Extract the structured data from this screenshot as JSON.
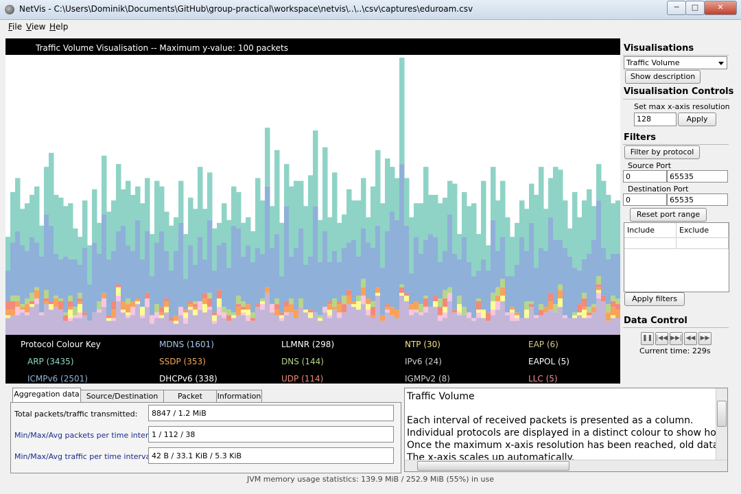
{
  "window": {
    "title": "NetVis - C:\\Users\\Dominik\\Documents\\GitHub\\group-practical\\workspace\\netvis\\..\\..\\csv\\captures\\eduroam.csv",
    "minimize": "─",
    "maximize": "□",
    "close": "✕"
  },
  "menu": [
    {
      "key": "F",
      "rest": "ile"
    },
    {
      "key": "V",
      "rest": "iew"
    },
    {
      "key": "H",
      "rest": "elp"
    }
  ],
  "visualisation": {
    "title": "Traffic Volume Visualisation -- Maximum y-value: 100 packets",
    "key_title": "Protocol Colour Key",
    "protocols": [
      {
        "name": "MDNS (1601)",
        "color": "#a9c5ea"
      },
      {
        "name": "LLMNR (298)",
        "color": "#ffffff"
      },
      {
        "name": "NTP (30)",
        "color": "#f5e08a"
      },
      {
        "name": "EAP (6)",
        "color": "#d8cc8c"
      },
      {
        "name": "ARP (3435)",
        "color": "#93d9c9"
      },
      {
        "name": "SSDP (353)",
        "color": "#f7a65a"
      },
      {
        "name": "DNS (144)",
        "color": "#b6d68c"
      },
      {
        "name": "IPv6 (24)",
        "color": "#d0d0d0"
      },
      {
        "name": "EAPOL (5)",
        "color": "#ffffff"
      },
      {
        "name": "ICMPv6 (2501)",
        "color": "#8eb3de"
      },
      {
        "name": "DHCPv6 (338)",
        "color": "#ffffff"
      },
      {
        "name": "UDP (114)",
        "color": "#f28a7a"
      },
      {
        "name": "IGMPv2 (8)",
        "color": "#d0d0d0"
      },
      {
        "name": "LLC (5)",
        "color": "#f78a9a"
      }
    ],
    "stack_colors": {
      "arp": "#8ed3c6",
      "icmpv6": "#8fb0d8",
      "mdns": "#c3b6d8",
      "ssdp": "#f9a25a",
      "llmnr": "#fdfd96",
      "dhcpv6": "#f8c6de",
      "udp": "#f28a7a",
      "dns": "#b6d68c"
    }
  },
  "chart_data": {
    "type": "bar",
    "title": "Traffic Volume Visualisation -- Maximum y-value: 100 packets",
    "ylim": [
      0,
      100
    ],
    "x_resolution": 128,
    "series_order": [
      "mdns",
      "dhcpv6",
      "llmnr",
      "ssdp",
      "udp",
      "dns",
      "icmpv6",
      "arp"
    ],
    "totals": [
      35,
      51,
      56,
      45,
      47,
      50,
      53,
      39,
      60,
      65,
      50,
      49,
      46,
      47,
      38,
      35,
      48,
      32,
      52,
      40,
      64,
      44,
      48,
      61,
      52,
      55,
      50,
      53,
      47,
      56,
      36,
      55,
      53,
      44,
      39,
      42,
      55,
      36,
      49,
      45,
      60,
      45,
      58,
      38,
      40,
      47,
      41,
      53,
      51,
      40,
      42,
      37,
      56,
      48,
      74,
      46,
      66,
      40,
      61,
      53,
      55,
      55,
      46,
      57,
      73,
      41,
      67,
      42,
      58,
      40,
      43,
      52,
      48,
      48,
      56,
      42,
      53,
      66,
      47,
      63,
      60,
      56,
      99,
      56,
      42,
      47,
      47,
      60,
      50,
      50,
      47,
      49,
      55,
      54,
      36,
      51,
      46,
      47,
      36,
      55,
      32,
      60,
      48,
      55,
      42,
      35,
      40,
      48,
      45,
      54,
      50,
      60,
      45,
      56,
      60,
      59,
      48,
      38,
      51,
      42,
      48,
      52,
      46,
      61,
      55,
      50,
      47,
      48
    ]
  },
  "sidebar": {
    "visualisations_heading": "Visualisations",
    "vis_selected": "Traffic Volume",
    "show_description": "Show description",
    "controls_heading": "Visualisation Controls",
    "resolution_label": "Set max x-axis resolution",
    "resolution_value": "128",
    "apply": "Apply",
    "filters_heading": "Filters",
    "filter_by_protocol": "Filter by protocol",
    "source_port_label": "Source Port",
    "source_port_min": "0",
    "source_port_max": "65535",
    "dest_port_label": "Destination Port",
    "dest_port_min": "0",
    "dest_port_max": "65535",
    "reset_port_range": "Reset port range",
    "include_col": "Include",
    "exclude_col": "Exclude",
    "apply_filters": "Apply filters",
    "data_control_heading": "Data Control",
    "current_time": "Current time: 229s"
  },
  "tabs": {
    "items": [
      "Aggregation data",
      "Source/Destination info",
      "Packet details",
      "Information"
    ],
    "rows": [
      {
        "label": "Total packets/traffic transmitted:",
        "value": "8847 / 1.2 MiB",
        "color": "#000000"
      },
      {
        "label": "Min/Max/Avg packets per time interval:",
        "value": "1 / 112 / 38",
        "color": "#1a2a8c"
      },
      {
        "label": "Min/Max/Avg traffic per time interval:",
        "value": "42 B / 33.1 KiB / 5.3 KiB",
        "color": "#1a2a8c"
      }
    ]
  },
  "description": {
    "title": "Traffic Volume",
    "lines": [
      "Each interval of received packets is presented as a column.",
      "Individual protocols are displayed in a distinct colour to show how m",
      "Once the maximum x-axis resolution has been reached, old data is d",
      "The x-axis scales up automatically."
    ]
  },
  "status": "JVM memory usage statistics: 139.9 MiB / 252.9 MiB (55%) in use"
}
